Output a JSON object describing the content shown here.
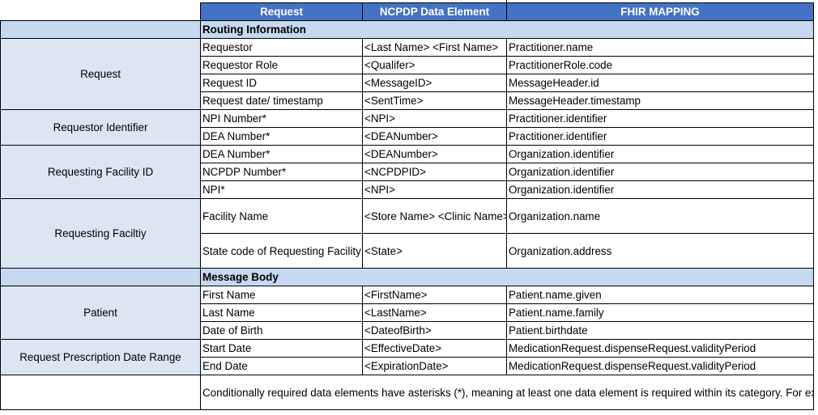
{
  "table": {
    "headers": [
      "Request",
      "NCPDP Data Element",
      "FHIR MAPPING"
    ],
    "sections": {
      "routing": "Routing Information",
      "body": "Message Body"
    },
    "groups": {
      "request": "Request",
      "requestor_identifier": "Requestor Identifier",
      "requesting_facility_id": "Requesting Facility ID",
      "requesting_facility": "Requesting Faciltiy",
      "patient": "Patient",
      "prescription_date_range": "Request Prescription Date Range"
    },
    "rows": [
      {
        "request": "Requestor",
        "ncpdp": "<Last Name> <First Name>",
        "fhir": "Practitioner.name"
      },
      {
        "request": "Requestor Role",
        "ncpdp": "<Qualifer>",
        "fhir": "PractitionerRole.code"
      },
      {
        "request": "Request ID",
        "ncpdp": "<MessageID>",
        "fhir": "MessageHeader.id"
      },
      {
        "request": "Request date/ timestamp",
        "ncpdp": "<SentTime>",
        "fhir": "MessageHeader.timestamp"
      },
      {
        "request": "NPI Number*",
        "ncpdp": "<NPI>",
        "fhir": "Practitioner.identifier"
      },
      {
        "request": "DEA Number*",
        "ncpdp": "<DEANumber>",
        "fhir": "Practitioner.identifier"
      },
      {
        "request": "DEA Number*",
        "ncpdp": "<DEANumber>",
        "fhir": "Organization.identifier"
      },
      {
        "request": "NCPDP Number*",
        "ncpdp": "<NCPDPID>",
        "fhir": "Organization.identifier"
      },
      {
        "request": "NPI*",
        "ncpdp": "<NPI>",
        "fhir": "Organization.identifier"
      },
      {
        "request": "Facility Name",
        "ncpdp": "<Store Name> <Clinic Name>",
        "fhir": "Organization.name"
      },
      {
        "request": "State code of Requesting Facility",
        "ncpdp": "<State>",
        "fhir": "Organization.address"
      },
      {
        "request": "First Name",
        "ncpdp": "<FirstName>",
        "fhir": "Patient.name.given"
      },
      {
        "request": "Last Name",
        "ncpdp": "<LastName>",
        "fhir": "Patient.name.family"
      },
      {
        "request": "Date of Birth",
        "ncpdp": "<DateofBirth>",
        "fhir": "Patient.birthdate"
      },
      {
        "request": "Start Date",
        "ncpdp": "<EffectiveDate>",
        "fhir": "MedicationRequest.dispenseRequest.validityPeriod"
      },
      {
        "request": "End Date",
        "ncpdp": "<ExpirationDate>",
        "fhir": "MedicationRequest.dispenseRequest.validityPeriod"
      }
    ],
    "note": "Conditionally required data elements have asterisks (*), meaning at least one data element is required within its category. For example, under Requesting Facility ID, one of the three data elements (DEA Number, NCPDP Number"
  }
}
